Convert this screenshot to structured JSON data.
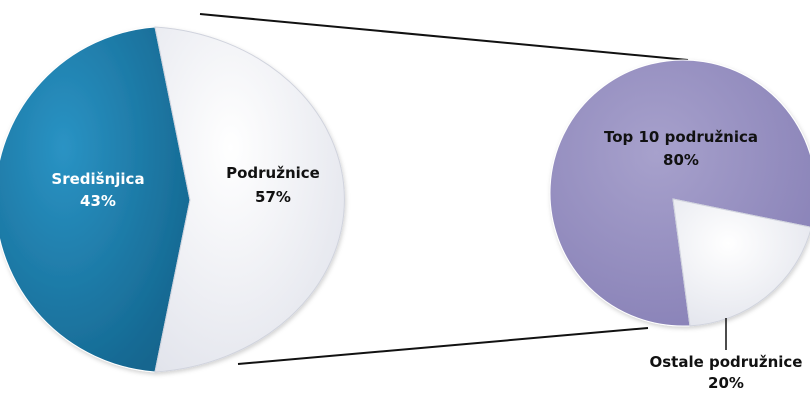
{
  "chart_data": {
    "type": "pie",
    "charts": [
      {
        "slices": [
          {
            "label": "Središnjica",
            "value": 43,
            "value_label": "43%",
            "color": "#1d7fae"
          },
          {
            "label": "Podružnice",
            "value": 57,
            "value_label": "57%",
            "color": "#f1f2f6"
          }
        ]
      },
      {
        "breakdown_of": "Podružnice",
        "slices": [
          {
            "label": "Top 10 podružnica",
            "value": 80,
            "value_label": "80%",
            "color": "#9a93c2"
          },
          {
            "label": "Ostale podružnice",
            "value": 20,
            "value_label": "20%",
            "color": "#f1f2f6"
          }
        ]
      }
    ]
  }
}
